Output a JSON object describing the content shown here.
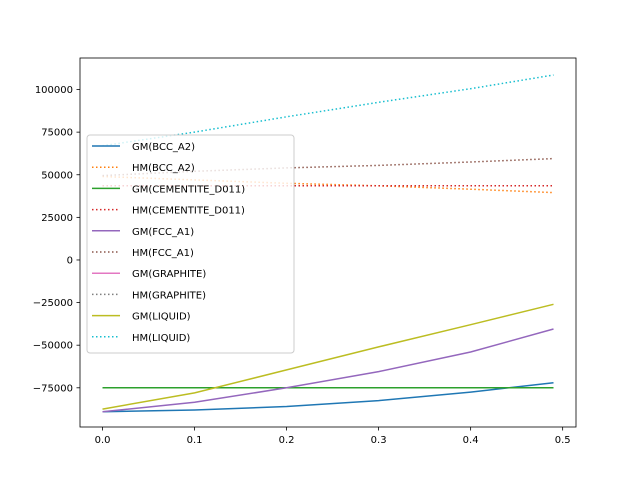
{
  "chart_data": {
    "type": "line",
    "title": "",
    "xlabel": "",
    "ylabel": "",
    "xlim": [
      -0.0245,
      0.5145
    ],
    "ylim": [
      -98000,
      118500
    ],
    "xticks": [
      0.0,
      0.1,
      0.2,
      0.3,
      0.4,
      0.5
    ],
    "xtick_labels": [
      "0.0",
      "0.1",
      "0.2",
      "0.3",
      "0.4",
      "0.5"
    ],
    "yticks": [
      -75000,
      -50000,
      -25000,
      0,
      25000,
      50000,
      75000,
      100000
    ],
    "ytick_labels": [
      "−75000",
      "−50000",
      "−25000",
      "0",
      "25000",
      "50000",
      "75000",
      "100000"
    ],
    "grid": false,
    "legend_position": "center-left",
    "series": [
      {
        "name": "GM(BCC_A2)",
        "color": "#1f77b4",
        "style": "solid",
        "x": [
          0.0,
          0.1,
          0.2,
          0.3,
          0.4,
          0.49
        ],
        "y": [
          -89000,
          -88000,
          -86000,
          -82500,
          -77500,
          -72000
        ]
      },
      {
        "name": "HM(BCC_A2)",
        "color": "#ff7f0e",
        "style": "dotted",
        "x": [
          0.0,
          0.1,
          0.2,
          0.3,
          0.4,
          0.49
        ],
        "y": [
          49000,
          47000,
          45000,
          43500,
          41500,
          39500
        ]
      },
      {
        "name": "GM(CEMENTITE_D011)",
        "color": "#2ca02c",
        "style": "solid",
        "x": [
          0.0,
          0.1,
          0.2,
          0.3,
          0.4,
          0.49
        ],
        "y": [
          -75000,
          -75000,
          -75000,
          -75000,
          -75000,
          -75000
        ]
      },
      {
        "name": "HM(CEMENTITE_D011)",
        "color": "#d62728",
        "style": "dotted",
        "x": [
          0.0,
          0.1,
          0.2,
          0.3,
          0.4,
          0.49
        ],
        "y": [
          43500,
          43500,
          43500,
          43500,
          43500,
          43500
        ]
      },
      {
        "name": "GM(FCC_A1)",
        "color": "#9467bd",
        "style": "solid",
        "x": [
          0.0,
          0.1,
          0.2,
          0.3,
          0.4,
          0.49
        ],
        "y": [
          -89000,
          -83500,
          -75000,
          -65500,
          -54000,
          -40500
        ]
      },
      {
        "name": "HM(FCC_A1)",
        "color": "#8c564b",
        "style": "dotted",
        "x": [
          0.0,
          0.1,
          0.2,
          0.3,
          0.4,
          0.49
        ],
        "y": [
          49500,
          52000,
          54000,
          55500,
          57500,
          59500
        ]
      },
      {
        "name": "GM(GRAPHITE)",
        "color": "#e377c2",
        "style": "solid",
        "x": [],
        "y": []
      },
      {
        "name": "HM(GRAPHITE)",
        "color": "#7f7f7f",
        "style": "dotted",
        "x": [],
        "y": []
      },
      {
        "name": "GM(LIQUID)",
        "color": "#bcbd22",
        "style": "solid",
        "x": [
          0.0,
          0.1,
          0.2,
          0.3,
          0.4,
          0.49
        ],
        "y": [
          -87500,
          -78000,
          -64500,
          -51000,
          -38000,
          -26000
        ]
      },
      {
        "name": "HM(LIQUID)",
        "color": "#17becf",
        "style": "dotted",
        "x": [
          0.0,
          0.1,
          0.2,
          0.3,
          0.4,
          0.49
        ],
        "y": [
          67000,
          75000,
          84000,
          92500,
          100500,
          108500
        ]
      }
    ]
  }
}
